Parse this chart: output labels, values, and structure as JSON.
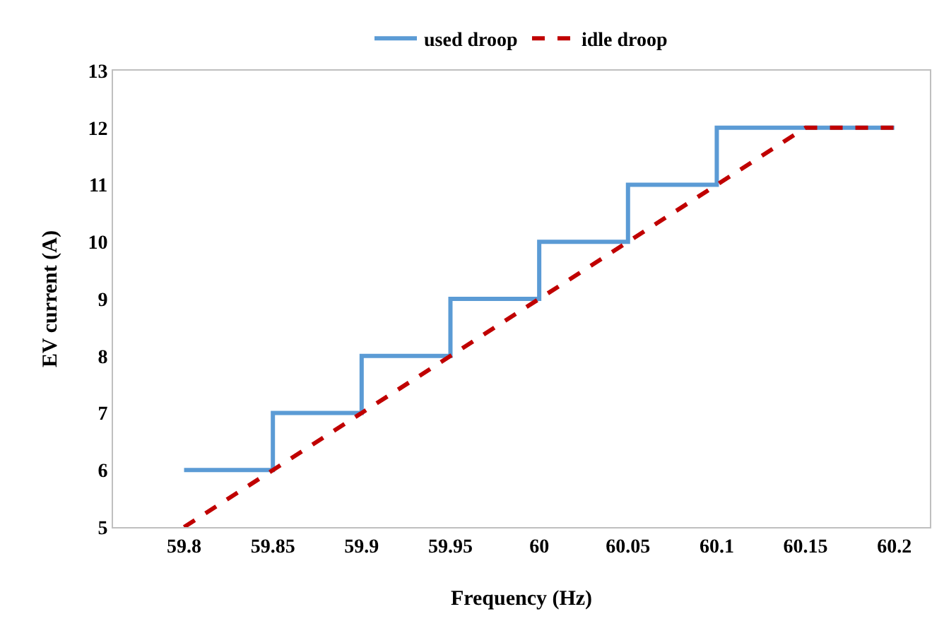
{
  "chart_data": {
    "type": "line",
    "xlabel": "Frequency (Hz)",
    "ylabel": "EV current (A)",
    "xlim": [
      59.76,
      60.22
    ],
    "xticks": [
      59.8,
      59.85,
      59.9,
      59.95,
      60,
      60.05,
      60.1,
      60.15,
      60.2
    ],
    "ylim": [
      5,
      13
    ],
    "yticks": [
      5,
      6,
      7,
      8,
      9,
      10,
      11,
      12,
      13
    ],
    "grid": false,
    "legend": "top",
    "marker": "none",
    "series": [
      {
        "name": "used droop",
        "type": "step",
        "color": "#5b9bd5",
        "line_style": "solid",
        "x": [
          59.8,
          59.85,
          59.9,
          59.95,
          60,
          60.05,
          60.1,
          60.2
        ],
        "values": [
          6,
          7,
          8,
          9,
          10,
          11,
          12,
          12
        ]
      },
      {
        "name": "idle droop",
        "color": "#c00000",
        "line_style": "dashed",
        "x": [
          59.8,
          60.15,
          60.2
        ],
        "values": [
          5,
          12,
          12
        ]
      }
    ]
  }
}
